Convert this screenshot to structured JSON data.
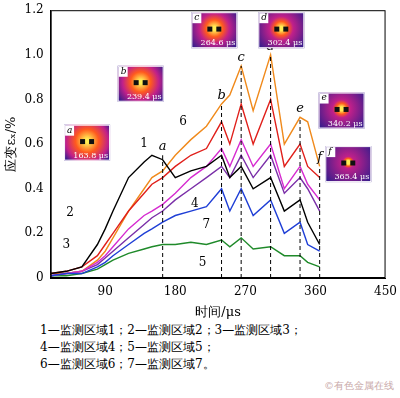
{
  "chart_data": {
    "type": "line",
    "x_label": "时间/μs",
    "y_label": "应变εₓ/%",
    "x": [
      20,
      40,
      60,
      80,
      90,
      100,
      120,
      140,
      150,
      163.8,
      180,
      200,
      220,
      239.4,
      250,
      264.6,
      280,
      302.4,
      320,
      340.2,
      350,
      365.4
    ],
    "series": [
      {
        "name": "1",
        "color": "#000000",
        "label_x": 140,
        "label_y": 0.6,
        "values": [
          0.02,
          0.03,
          0.05,
          0.15,
          0.22,
          0.3,
          0.45,
          0.52,
          0.55,
          0.53,
          0.45,
          0.48,
          0.5,
          0.55,
          0.45,
          0.5,
          0.4,
          0.45,
          0.3,
          0.35,
          0.25,
          0.15
        ]
      },
      {
        "name": "2",
        "color": "#e0201b",
        "label_x": 45,
        "label_y": 0.29,
        "values": [
          0.02,
          0.03,
          0.05,
          0.1,
          0.15,
          0.2,
          0.3,
          0.38,
          0.42,
          0.45,
          0.5,
          0.55,
          0.58,
          0.7,
          0.6,
          0.78,
          0.6,
          0.8,
          0.5,
          0.6,
          0.5,
          0.45
        ]
      },
      {
        "name": "3",
        "color": "#1f3fd6",
        "label_x": 40,
        "label_y": 0.15,
        "values": [
          0.01,
          0.02,
          0.02,
          0.05,
          0.07,
          0.1,
          0.15,
          0.2,
          0.22,
          0.25,
          0.28,
          0.3,
          0.32,
          0.4,
          0.3,
          0.4,
          0.28,
          0.35,
          0.2,
          0.25,
          0.15,
          0.12
        ]
      },
      {
        "name": "4",
        "color": "#d62bd0",
        "label_x": 205,
        "label_y": 0.33,
        "values": [
          0.01,
          0.02,
          0.03,
          0.07,
          0.1,
          0.14,
          0.22,
          0.28,
          0.3,
          0.33,
          0.38,
          0.45,
          0.5,
          0.58,
          0.5,
          0.62,
          0.5,
          0.6,
          0.4,
          0.5,
          0.42,
          0.35
        ]
      },
      {
        "name": "5",
        "color": "#1f8a2a",
        "label_x": 215,
        "label_y": 0.07,
        "values": [
          0.01,
          0.01,
          0.02,
          0.04,
          0.06,
          0.08,
          0.11,
          0.13,
          0.14,
          0.15,
          0.15,
          0.16,
          0.15,
          0.17,
          0.14,
          0.18,
          0.13,
          0.14,
          0.1,
          0.1,
          0.07,
          0.05
        ]
      },
      {
        "name": "6",
        "color": "#f08a1c",
        "label_x": 190,
        "label_y": 0.7,
        "values": [
          0.02,
          0.02,
          0.03,
          0.08,
          0.12,
          0.18,
          0.3,
          0.4,
          0.45,
          0.48,
          0.55,
          0.62,
          0.68,
          0.78,
          0.82,
          0.95,
          0.75,
          1.0,
          0.6,
          0.72,
          0.7,
          0.5
        ]
      },
      {
        "name": "7",
        "color": "#7a2fa8",
        "label_x": 220,
        "label_y": 0.24,
        "values": [
          0.01,
          0.02,
          0.03,
          0.06,
          0.09,
          0.12,
          0.18,
          0.24,
          0.27,
          0.3,
          0.35,
          0.4,
          0.45,
          0.5,
          0.45,
          0.55,
          0.45,
          0.55,
          0.38,
          0.45,
          0.4,
          0.3
        ]
      }
    ],
    "xlim": [
      20,
      450
    ],
    "xticks": [
      90,
      180,
      270,
      360,
      450
    ],
    "ylim": [
      0,
      1.2
    ],
    "yticks": [
      0,
      0.2,
      0.4,
      0.6,
      0.8,
      {
        "value": 1,
        "label": "1.0"
      },
      1.2
    ],
    "grid": false,
    "annotations": [
      {
        "label": "a",
        "x": 163.8,
        "y": 0.55,
        "time_label": "163.8 μs"
      },
      {
        "label": "b",
        "x": 239.4,
        "y": 0.78,
        "time_label": "239.4 μs"
      },
      {
        "label": "c",
        "x": 264.6,
        "y": 0.95,
        "time_label": "264.6 μs"
      },
      {
        "label": "d",
        "x": 302.4,
        "y": 1.0,
        "time_label": "302.4 μs"
      },
      {
        "label": "e",
        "x": 340.2,
        "y": 0.72,
        "time_label": "340.2 μs"
      },
      {
        "label": "f",
        "x": 365.4,
        "y": 0.5,
        "time_label": "365.4 μs"
      }
    ],
    "caption": [
      "1—监测区域1；2—监测区域2；3—监测区域3；",
      "4—监测区域4；5—监测区域5；",
      "6—监测区域6；7—监测区域7。"
    ],
    "source": "©有色金属在线"
  }
}
